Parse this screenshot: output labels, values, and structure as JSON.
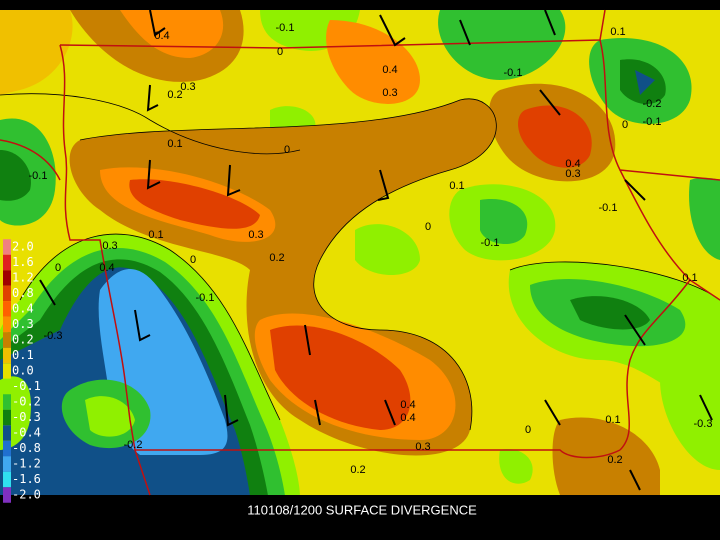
{
  "caption": "110108/1200 SURFACE DIVERGENCE",
  "colorbar": {
    "labels": [
      "2.0",
      "1.6",
      "1.2",
      "0.8",
      "0.4",
      "0.3",
      "0.2",
      "0.1",
      "0.0",
      "-0.1",
      "-0.2",
      "-0.3",
      "-0.4",
      "-0.8",
      "-1.2",
      "-1.6",
      "-2.0"
    ],
    "colors": [
      "#f08080",
      "#e02020",
      "#a00000",
      "#e04000",
      "#ff6000",
      "#ff8c00",
      "#c88000",
      "#f0c000",
      "#e8e000",
      "#90f000",
      "#30c030",
      "#108010",
      "#105088",
      "#2070d0",
      "#40a8f0",
      "#30e0f0",
      "#8030c0"
    ]
  },
  "contour_labels": [
    "0.4",
    "-0.1",
    "0",
    "0.1",
    "0.2",
    "0.3",
    "0.4",
    "0.3",
    "-0.1",
    "-0.2",
    "-0.1",
    "0",
    "0.1",
    "0",
    "0.4",
    "0.3",
    "0.1",
    "-0.1",
    "0.3",
    "0.4",
    "0",
    "-0.1",
    "0.1",
    "0",
    "0.1",
    "-0.1",
    "0",
    "-0.1",
    "0.2",
    "-0.3",
    "0.3",
    "0.4",
    "0.4",
    "0.3",
    "0.2",
    "0",
    "0.1",
    "-0.3",
    "0.2",
    "-0.2"
  ]
}
